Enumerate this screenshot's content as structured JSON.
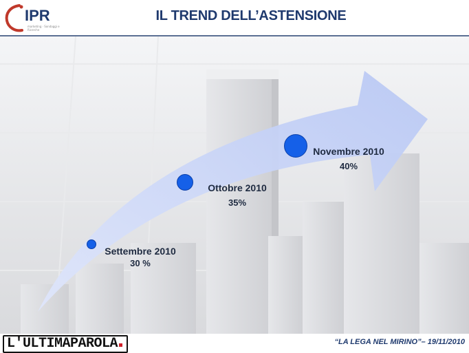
{
  "header": {
    "logo_text": "IPR",
    "logo_subtext": "marketing · Sondaggi e Ricerche",
    "title": "IL TREND DELL’ASTENSIONE"
  },
  "trend": {
    "points": [
      {
        "month": "Settembre 2010",
        "value": "30 %"
      },
      {
        "month": "Ottobre 2010",
        "value": "35%"
      },
      {
        "month": "Novembre 2010",
        "value": "40%"
      }
    ]
  },
  "footer": {
    "brand": "L'ULTIMAPAROLA",
    "caption": "“LA LEGA NEL MIRINO”– 19/11/2010"
  },
  "colors": {
    "title": "#1f3a6e",
    "arrow": "#c8d4f5",
    "dot": "#1560e8",
    "rule": "#5b6f93"
  }
}
